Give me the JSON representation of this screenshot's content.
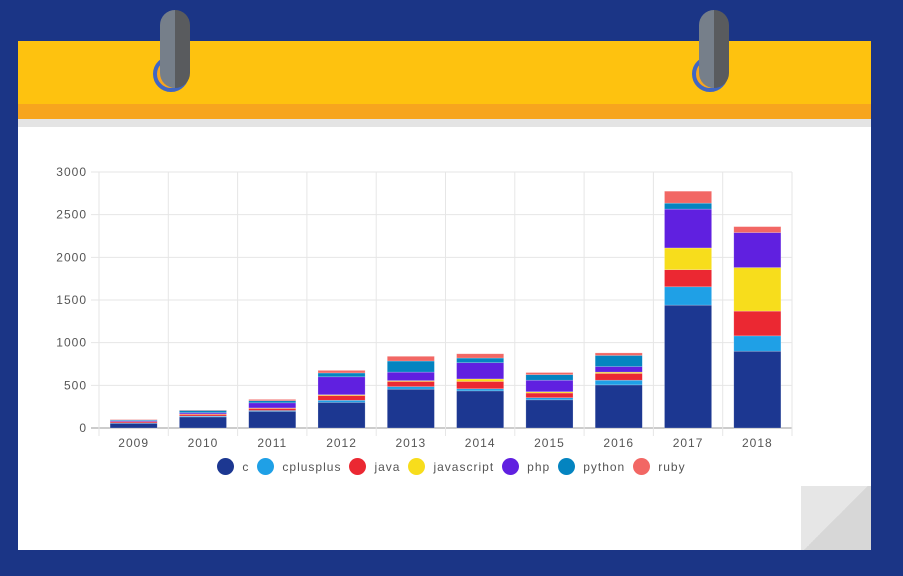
{
  "chart_data": {
    "type": "bar",
    "stacked": true,
    "title": "",
    "xlabel": "",
    "ylabel": "",
    "ylim": [
      0,
      3000
    ],
    "yticks": [
      "0",
      "500",
      "1000",
      "1500",
      "2000",
      "2500",
      "3000"
    ],
    "ytick_values": [
      0,
      500,
      1000,
      1500,
      2000,
      2500,
      3000
    ],
    "grid": true,
    "legend_position": "bottom",
    "categories": [
      "2009",
      "2010",
      "2011",
      "2012",
      "2013",
      "2014",
      "2015",
      "2016",
      "2017",
      "2018"
    ],
    "series": [
      {
        "name": "c",
        "color": "#1c3791",
        "values": [
          55,
          130,
          195,
          300,
          455,
          435,
          330,
          505,
          1440,
          900
        ]
      },
      {
        "name": "cplusplus",
        "color": "#1fa0e6",
        "values": [
          5,
          10,
          10,
          25,
          30,
          25,
          25,
          55,
          215,
          180
        ]
      },
      {
        "name": "java",
        "color": "#eb2832",
        "values": [
          15,
          20,
          25,
          55,
          60,
          85,
          55,
          80,
          200,
          290
        ]
      },
      {
        "name": "javascript",
        "color": "#f7dd1c",
        "values": [
          0,
          5,
          5,
          10,
          10,
          30,
          15,
          15,
          255,
          510
        ]
      },
      {
        "name": "php",
        "color": "#6020e0",
        "values": [
          10,
          15,
          60,
          210,
          100,
          190,
          135,
          65,
          455,
          410
        ]
      },
      {
        "name": "python",
        "color": "#0484c0",
        "values": [
          10,
          25,
          25,
          45,
          130,
          55,
          65,
          130,
          70,
          0
        ]
      },
      {
        "name": "ruby",
        "color": "#f26764",
        "values": [
          5,
          5,
          15,
          30,
          55,
          50,
          25,
          30,
          140,
          70
        ]
      }
    ]
  },
  "colors": {
    "background": "#1b3586",
    "header": "#fec20f",
    "header_strip": "#f7a51e"
  }
}
